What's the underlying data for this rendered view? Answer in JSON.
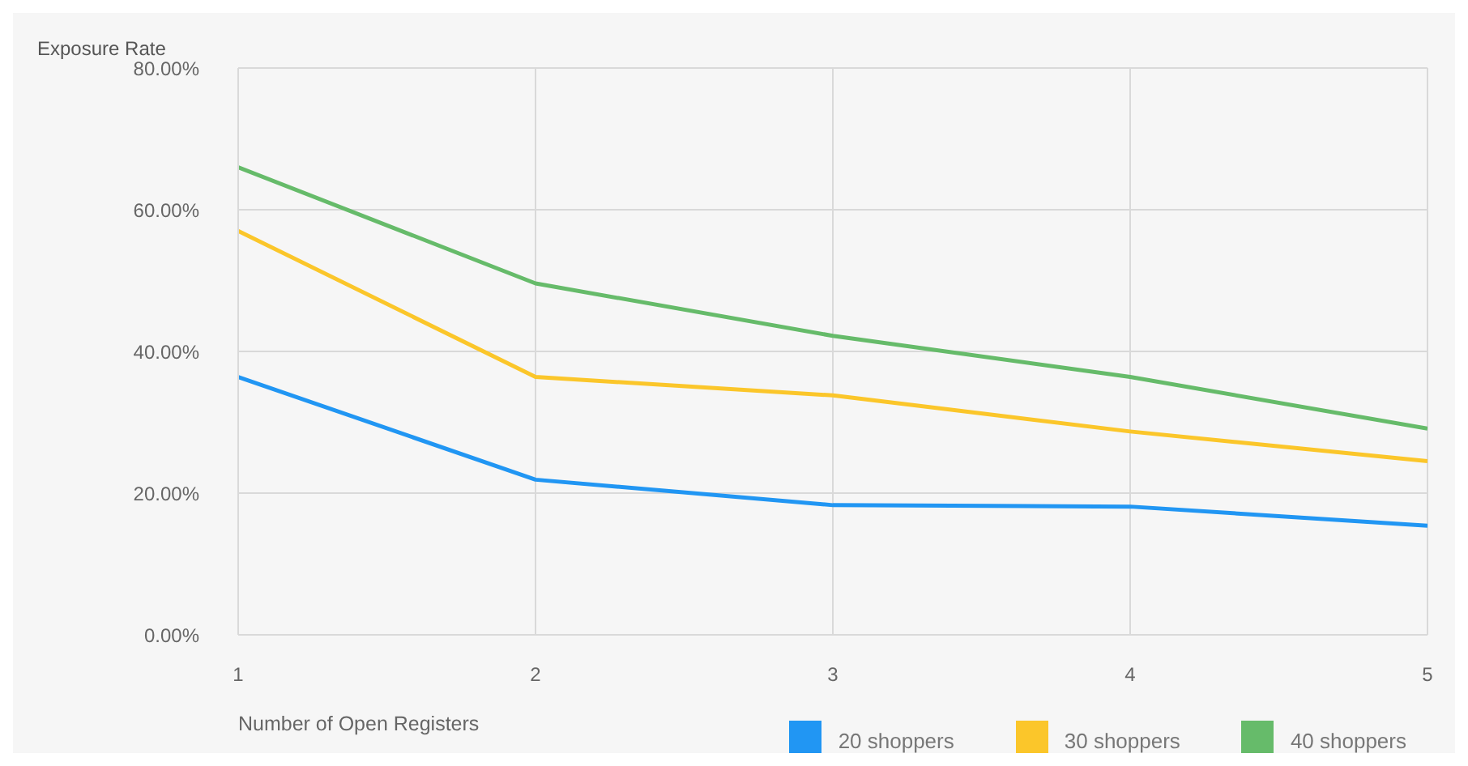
{
  "chart_data": {
    "type": "line",
    "xlabel": "Number of Open Registers",
    "ylabel": "Exposure Rate",
    "x": [
      1,
      2,
      3,
      4,
      5
    ],
    "xlim": [
      1,
      5
    ],
    "xticks": [
      1,
      2,
      3,
      4,
      5
    ],
    "ylim": [
      0,
      80
    ],
    "yticks": [
      {
        "value": 0,
        "label": "0.00%"
      },
      {
        "value": 20,
        "label": "20.00%"
      },
      {
        "value": 40,
        "label": "40.00%"
      },
      {
        "value": 60,
        "label": "60.00%"
      },
      {
        "value": 80,
        "label": "80.00%"
      }
    ],
    "series": [
      {
        "name": "20 shoppers",
        "color": "#2196f3",
        "values": [
          36.4,
          21.9,
          18.3,
          18.1,
          15.4
        ]
      },
      {
        "name": "30 shoppers",
        "color": "#fbc62a",
        "values": [
          57.0,
          36.4,
          33.8,
          28.7,
          24.5
        ]
      },
      {
        "name": "40 shoppers",
        "color": "#66bb6a",
        "values": [
          66.0,
          49.6,
          42.2,
          36.4,
          29.1
        ]
      }
    ],
    "grid": true,
    "legend": "bottom right",
    "marker": "none",
    "line_style": "solid"
  }
}
